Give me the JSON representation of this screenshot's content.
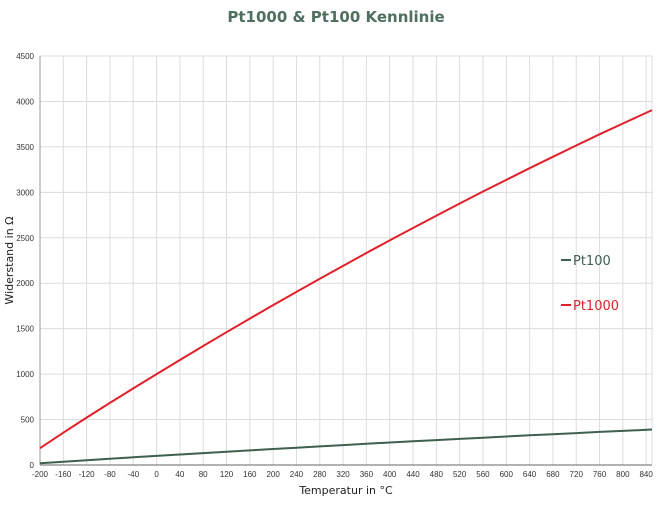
{
  "colors": {
    "title": "#4f6f5f",
    "grid": "#dcdcdc",
    "pt100": "#3f5f4f",
    "pt1000": "#e0202a"
  },
  "chart_data": {
    "type": "line",
    "title": "Pt1000 & Pt100 Kennlinie",
    "xlabel": "Temperatur in °C",
    "ylabel": "Widerstand in Ω",
    "xlim": [
      -200,
      850
    ],
    "ylim": [
      0,
      4500
    ],
    "grid": true,
    "legend_position": "right",
    "x_ticks": [
      -200,
      -160,
      -120,
      -80,
      -40,
      0,
      40,
      80,
      120,
      160,
      200,
      240,
      280,
      320,
      360,
      400,
      440,
      480,
      520,
      560,
      600,
      640,
      680,
      720,
      760,
      800,
      840
    ],
    "y_ticks": [
      0,
      500,
      1000,
      1500,
      2000,
      2500,
      3000,
      3500,
      4000,
      4500
    ],
    "x": [
      -200,
      -160,
      -120,
      -80,
      -40,
      0,
      40,
      80,
      120,
      160,
      200,
      240,
      280,
      320,
      360,
      400,
      440,
      480,
      520,
      560,
      600,
      640,
      680,
      720,
      760,
      800,
      850
    ],
    "series": [
      {
        "name": "Pt100",
        "values": [
          18.5,
          35.5,
          52.1,
          68.3,
          84.3,
          100.0,
          115.5,
          130.9,
          146.1,
          161.1,
          175.9,
          190.5,
          204.9,
          219.1,
          233.2,
          247.1,
          260.8,
          274.3,
          287.7,
          300.9,
          313.7,
          326.5,
          339.1,
          351.5,
          363.8,
          375.7,
          390.5
        ]
      },
      {
        "name": "Pt1000",
        "values": [
          185,
          355,
          521,
          683,
          843,
          1000,
          1155,
          1309,
          1461,
          1611,
          1759,
          1905,
          2049,
          2191,
          2332,
          2471,
          2608,
          2743,
          2877,
          3009,
          3137,
          3265,
          3391,
          3515,
          3638,
          3757,
          3905
        ]
      }
    ]
  }
}
